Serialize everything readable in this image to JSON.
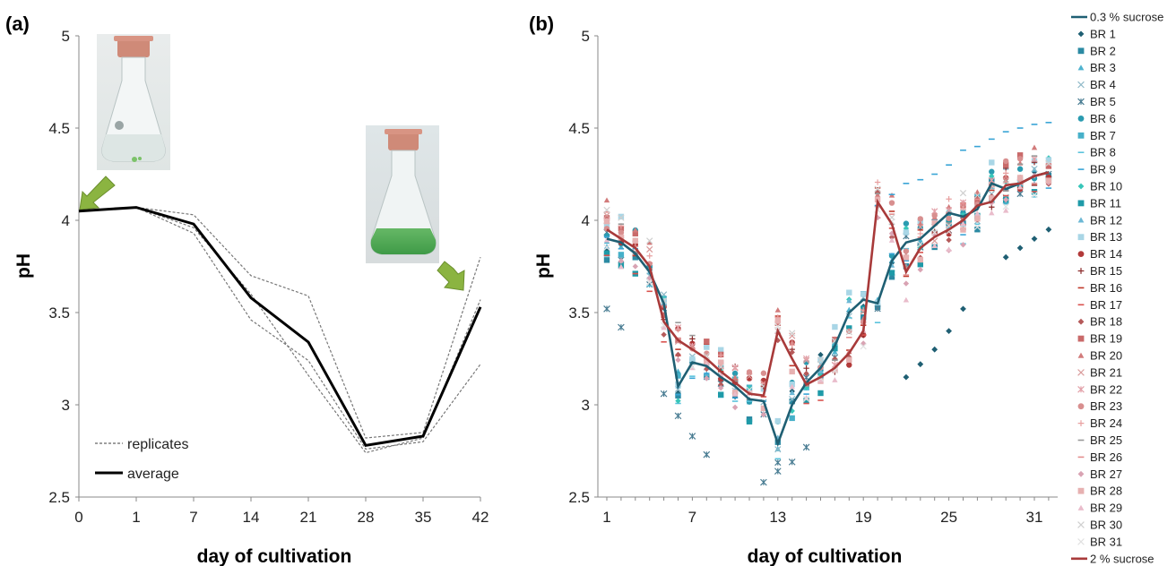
{
  "chart_data": [
    {
      "panel": "(a)",
      "type": "line",
      "xlabel": "day of cultivation",
      "ylabel": "pH",
      "ylim": [
        2.5,
        5
      ],
      "yticks": [
        "2.5",
        "3",
        "3.5",
        "4",
        "4.5",
        "5"
      ],
      "categories": [
        "0",
        "1",
        "7",
        "14",
        "21",
        "28",
        "35",
        "42"
      ],
      "legend_position": "bottom-left",
      "series": [
        {
          "name": "replicates",
          "values": [
            4.05,
            4.07,
            4.03,
            3.7,
            3.59,
            2.82,
            2.85,
            3.8
          ]
        },
        {
          "name": "replicates",
          "values": [
            4.05,
            4.07,
            3.93,
            3.46,
            3.24,
            2.76,
            2.8,
            3.22
          ]
        },
        {
          "name": "replicates",
          "values": [
            4.05,
            4.07,
            3.96,
            3.6,
            3.16,
            2.74,
            2.82,
            3.57
          ]
        },
        {
          "name": "average",
          "values": [
            4.05,
            4.07,
            3.98,
            3.58,
            3.34,
            2.78,
            2.83,
            3.53
          ]
        }
      ],
      "images": [
        "flask-start-photo",
        "flask-end-photo"
      ],
      "colors": {
        "replicates": "#777777",
        "average": "#000000",
        "arrow": "#8bb441"
      }
    },
    {
      "panel": "(b)",
      "type": "scatter",
      "xlabel": "day of cultivation",
      "ylabel": "pH",
      "ylim": [
        2.5,
        5
      ],
      "xlim": [
        0.5,
        32.5
      ],
      "yticks": [
        "2.5",
        "3",
        "3.5",
        "4",
        "4.5",
        "5"
      ],
      "xticks": [
        "1",
        "7",
        "13",
        "19",
        "25",
        "31"
      ],
      "legend_position": "right",
      "lines": [
        {
          "name": "0.3 % sucrose",
          "color": "#1f5f73",
          "x": [
            1,
            2,
            3,
            4,
            5,
            6,
            7,
            8,
            9,
            10,
            11,
            12,
            13,
            14,
            15,
            16,
            17,
            18,
            19,
            20,
            21,
            22,
            23,
            24,
            25,
            26,
            27,
            28,
            29,
            30,
            31,
            32
          ],
          "y": [
            3.9,
            3.88,
            3.82,
            3.72,
            3.55,
            3.1,
            3.23,
            3.21,
            3.15,
            3.1,
            3.03,
            3.02,
            2.79,
            3.0,
            3.12,
            3.2,
            3.32,
            3.5,
            3.57,
            3.55,
            3.78,
            3.88,
            3.9,
            3.97,
            4.04,
            4.02,
            4.06,
            4.2,
            4.17,
            4.2,
            4.24,
            4.26
          ]
        },
        {
          "name": "2 % sucrose",
          "color": "#a83a3a",
          "x": [
            1,
            2,
            3,
            4,
            5,
            6,
            7,
            8,
            9,
            10,
            11,
            12,
            13,
            14,
            15,
            16,
            17,
            18,
            19,
            20,
            21,
            22,
            23,
            24,
            25,
            26,
            27,
            28,
            29,
            30,
            31,
            32
          ],
          "y": [
            3.95,
            3.9,
            3.85,
            3.75,
            3.45,
            3.35,
            3.3,
            3.25,
            3.18,
            3.12,
            3.06,
            3.05,
            3.4,
            3.25,
            3.11,
            3.15,
            3.2,
            3.28,
            3.4,
            4.1,
            3.98,
            3.72,
            3.85,
            3.91,
            3.95,
            4.0,
            4.08,
            4.1,
            4.19,
            4.2,
            4.24,
            4.26
          ]
        }
      ],
      "bioreactors": [
        {
          "name": "BR 1",
          "color": "#1f5f73",
          "marker": "diamond"
        },
        {
          "name": "BR 2",
          "color": "#2b8aa3",
          "marker": "square"
        },
        {
          "name": "BR 3",
          "color": "#4fb3cf",
          "marker": "triangle"
        },
        {
          "name": "BR 4",
          "color": "#8fb9c8",
          "marker": "x"
        },
        {
          "name": "BR 5",
          "color": "#4a7d93",
          "marker": "star"
        },
        {
          "name": "BR 6",
          "color": "#2a9bb0",
          "marker": "circle"
        },
        {
          "name": "BR 7",
          "color": "#46b0c9",
          "marker": "square"
        },
        {
          "name": "BR 8",
          "color": "#5bc3dc",
          "marker": "dash"
        },
        {
          "name": "BR 9",
          "color": "#39a4d6",
          "marker": "dash"
        },
        {
          "name": "BR 10",
          "color": "#37c6b9",
          "marker": "diamond"
        },
        {
          "name": "BR 11",
          "color": "#1e9aa8",
          "marker": "square"
        },
        {
          "name": "BR 12",
          "color": "#6cb8d5",
          "marker": "triangle"
        },
        {
          "name": "BR 13",
          "color": "#a9d6e6",
          "marker": "square"
        },
        {
          "name": "BR 14",
          "color": "#b23a3a",
          "marker": "circle"
        },
        {
          "name": "BR 15",
          "color": "#8a2a2a",
          "marker": "plus"
        },
        {
          "name": "BR 16",
          "color": "#c0392b",
          "marker": "dash"
        },
        {
          "name": "BR 17",
          "color": "#d9534f",
          "marker": "dash"
        },
        {
          "name": "BR 18",
          "color": "#b55a5a",
          "marker": "diamond"
        },
        {
          "name": "BR 19",
          "color": "#c96a6a",
          "marker": "square"
        },
        {
          "name": "BR 20",
          "color": "#d27b7b",
          "marker": "triangle"
        },
        {
          "name": "BR 21",
          "color": "#d99a9a",
          "marker": "x"
        },
        {
          "name": "BR 22",
          "color": "#e2a0a8",
          "marker": "star"
        },
        {
          "name": "BR 23",
          "color": "#d88f8f",
          "marker": "circle"
        },
        {
          "name": "BR 24",
          "color": "#e8a0a0",
          "marker": "plus"
        },
        {
          "name": "BR 25",
          "color": "#999999",
          "marker": "dash"
        },
        {
          "name": "BR 26",
          "color": "#e38f8f",
          "marker": "dash"
        },
        {
          "name": "BR 27",
          "color": "#d9a3b3",
          "marker": "diamond"
        },
        {
          "name": "BR 28",
          "color": "#e7b1b1",
          "marker": "square"
        },
        {
          "name": "BR 29",
          "color": "#e9bccb",
          "marker": "triangle"
        },
        {
          "name": "BR 30",
          "color": "#cfcfcf",
          "marker": "x"
        },
        {
          "name": "BR 31",
          "color": "#e0e0e0",
          "marker": "x"
        }
      ],
      "spread_notes_values": {
        "br5": {
          "x": [
            1,
            2,
            5,
            6,
            7,
            8,
            12,
            13,
            14,
            15
          ],
          "y": [
            3.52,
            3.42,
            3.06,
            2.94,
            2.83,
            2.73,
            2.58,
            2.64,
            2.69,
            2.77
          ]
        },
        "br1_late": {
          "x": [
            22,
            23,
            24,
            25,
            26,
            29,
            30,
            31,
            32
          ],
          "y": [
            3.15,
            3.22,
            3.3,
            3.4,
            3.52,
            3.8,
            3.85,
            3.9,
            3.95
          ]
        },
        "br9_high": {
          "x": [
            20,
            21,
            22,
            23,
            24,
            25,
            26,
            27,
            28,
            29,
            30,
            31,
            32
          ],
          "y": [
            4.08,
            4.14,
            4.2,
            4.22,
            4.25,
            4.3,
            4.38,
            4.4,
            4.44,
            4.48,
            4.5,
            4.52,
            4.53
          ]
        }
      }
    }
  ]
}
